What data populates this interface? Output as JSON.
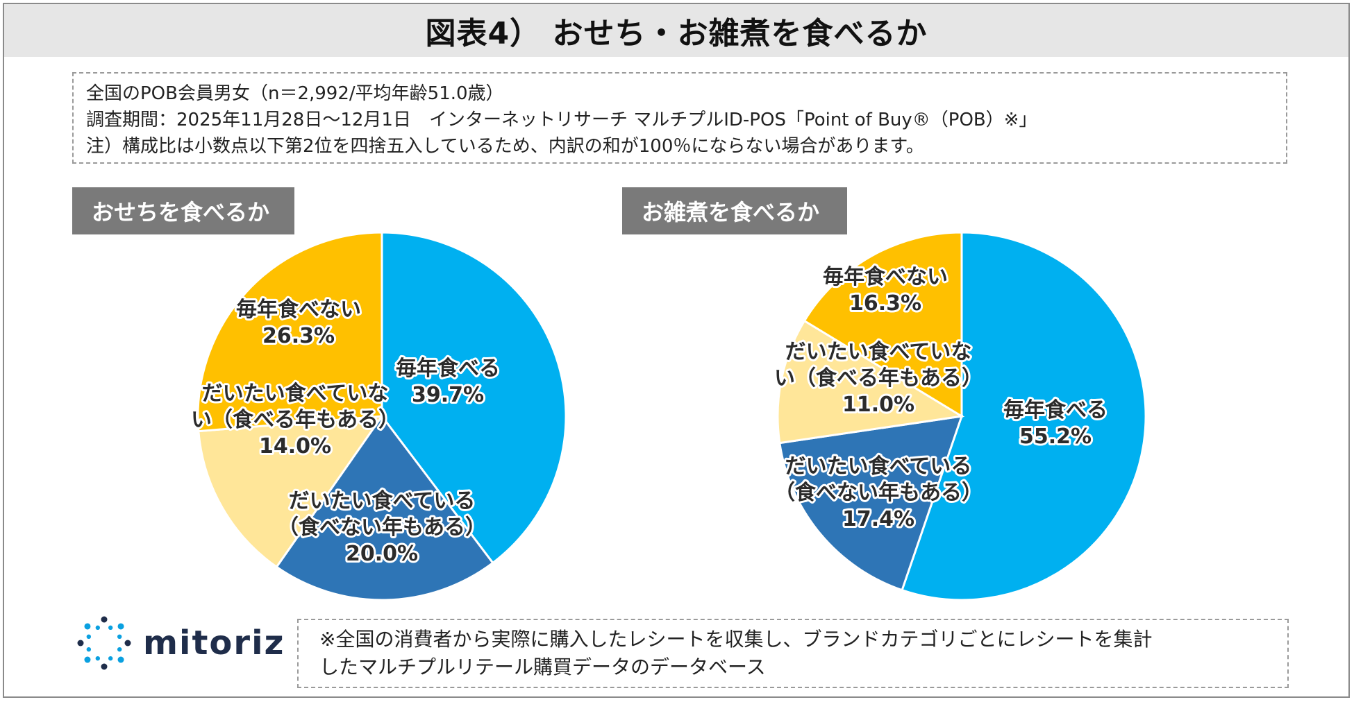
{
  "title": "図表4） おせち・お雑煮を食べるか",
  "info": {
    "line1": "全国のPOB会員男女（n＝2,992/平均年齢51.0歳）",
    "line2": "調査期間：2025年11月28日～12月1日　インターネットリサーチ マルチプルID-POS「Point of Buy®（POB）※」",
    "line3": "注）構成比は小数点以下第2位を四捨五入しているため、内訳の和が100％にならない場合があります。"
  },
  "chart_data": [
    {
      "type": "pie",
      "title": "おせちを食べるか",
      "slices": [
        {
          "label": [
            "毎年食べる"
          ],
          "value": 39.7,
          "value_label": "39.7%",
          "color": "#00b0f0"
        },
        {
          "label": [
            "だいたい食べている",
            "（食べない年もある）"
          ],
          "value": 20.0,
          "value_label": "20.0%",
          "color": "#2e75b6"
        },
        {
          "label": [
            "だいたい食べていな",
            "い（食べる年もある）"
          ],
          "value": 14.0,
          "value_label": "14.0%",
          "color": "#ffe699"
        },
        {
          "label": [
            "毎年食べない"
          ],
          "value": 26.3,
          "value_label": "26.3%",
          "color": "#ffc000"
        }
      ]
    },
    {
      "type": "pie",
      "title": "お雑煮を食べるか",
      "slices": [
        {
          "label": [
            "毎年食べる"
          ],
          "value": 55.2,
          "value_label": "55.2%",
          "color": "#00b0f0"
        },
        {
          "label": [
            "だいたい食べている",
            "（食べない年もある）"
          ],
          "value": 17.4,
          "value_label": "17.4%",
          "color": "#2e75b6"
        },
        {
          "label": [
            "だいたい食べていな",
            "い（食べる年もある）"
          ],
          "value": 11.0,
          "value_label": "11.0%",
          "color": "#ffe699"
        },
        {
          "label": [
            "毎年食べない"
          ],
          "value": 16.3,
          "value_label": "16.3%",
          "color": "#ffc000"
        }
      ]
    }
  ],
  "logo": {
    "text": "mitoriz",
    "icon": "mitoriz-logo-icon",
    "color": "#0aa0e0"
  },
  "note": {
    "line1": "※全国の消費者から実際に購入したレシートを収集し、ブランドカテゴリごとにレシートを集計",
    "line2": "したマルチプルリテール購買データのデータベース"
  }
}
